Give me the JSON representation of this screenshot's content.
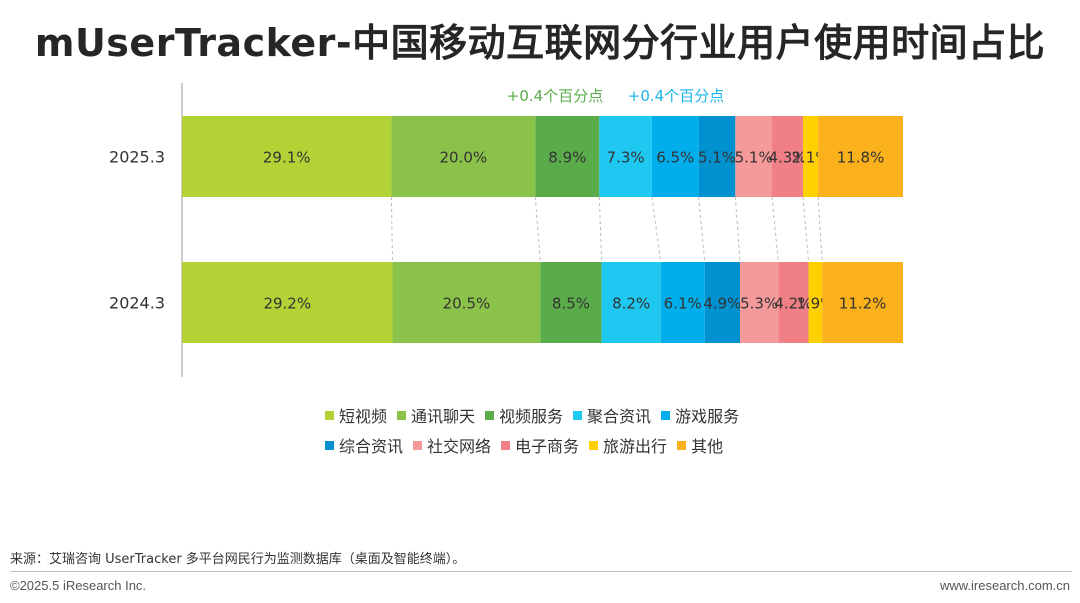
{
  "title": "mUserTracker-中国移动互联网分行业用户使用时间占比",
  "annotations": [
    "+0.4个百分点",
    "+0.4个百分点"
  ],
  "colors": {
    "短视频": "#b2d235",
    "通讯聊天": "#8bc34a",
    "视频服务": "#5aac4a",
    "聚合资讯": "#1fc8f0",
    "游戏服务": "#00aeeb",
    "综合资讯": "#0092d0",
    "社交网络": "#f59a9a",
    "电子商务": "#f07f86",
    "旅游出行": "#ffd000",
    "其他": "#fbb11c"
  },
  "annotation_colors": [
    "#5aac4a",
    "#1ab4e8"
  ],
  "chart_data": {
    "type": "bar",
    "orientation": "horizontal",
    "stacked": true,
    "normalized": true,
    "categories": [
      "2025.3",
      "2024.3"
    ],
    "series": [
      {
        "name": "短视频",
        "values": [
          29.1,
          29.2
        ],
        "labels": [
          "29.1%",
          "29.2%"
        ]
      },
      {
        "name": "通讯聊天",
        "values": [
          20.0,
          20.5
        ],
        "labels": [
          "20.0%",
          "20.5%"
        ]
      },
      {
        "name": "视频服务",
        "values": [
          8.9,
          8.5
        ],
        "labels": [
          "8.9%",
          "8.5%"
        ]
      },
      {
        "name": "聚合资讯",
        "values": [
          7.3,
          8.2
        ],
        "labels": [
          "7.3%",
          "8.2%"
        ]
      },
      {
        "name": "游戏服务",
        "values": [
          6.5,
          6.1
        ],
        "labels": [
          "6.5%",
          "6.1%"
        ]
      },
      {
        "name": "综合资讯",
        "values": [
          5.1,
          4.9
        ],
        "labels": [
          "5.1%",
          "4.9%"
        ]
      },
      {
        "name": "社交网络",
        "values": [
          5.1,
          5.3
        ],
        "labels": [
          "5.1%",
          "5.3%"
        ]
      },
      {
        "name": "电子商务",
        "values": [
          4.3,
          4.2
        ],
        "labels": [
          "4.3%",
          "4.2%"
        ]
      },
      {
        "name": "旅游出行",
        "values": [
          2.1,
          1.9
        ],
        "labels": [
          "2.1%",
          "1.9%"
        ]
      },
      {
        "name": "其他",
        "values": [
          11.8,
          11.2
        ],
        "labels": [
          "11.8%",
          "11.2%"
        ]
      }
    ],
    "legend_position": "bottom",
    "grid": false
  },
  "source": "来源：艾瑞咨询 UserTracker 多平台网民行为监测数据库（桌面及智能终端）。",
  "copyright": "©2025.5 iResearch Inc.",
  "website": "www.iresearch.com.cn"
}
